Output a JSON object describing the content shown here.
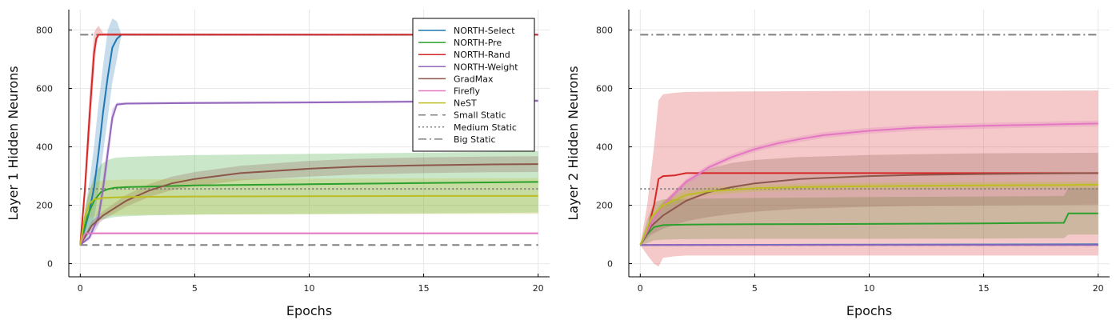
{
  "chart_data": [
    {
      "type": "line",
      "title": "",
      "xlabel": "Epochs",
      "ylabel": "Layer 1 Hidden Neurons",
      "xlim": [
        -0.5,
        20.5
      ],
      "ylim": [
        -45,
        870
      ],
      "xticks": [
        "0",
        "5",
        "10",
        "15",
        "20"
      ],
      "yticks": [
        "0",
        "200",
        "400",
        "600",
        "800"
      ],
      "grid": true,
      "legend_position": "top-right",
      "legend": [
        "NORTH-Select",
        "NORTH-Pre",
        "NORTH-Rand",
        "NORTH-Weight",
        "GradMax",
        "Firefly",
        "NeST",
        "Small Static",
        "Medium Static",
        "Big Static"
      ],
      "series": [
        {
          "name": "NORTH-Select",
          "color": "#1f77b4",
          "x": [
            0,
            0.2,
            0.4,
            0.6,
            0.8,
            1.0,
            1.2,
            1.4,
            1.6,
            1.8,
            20
          ],
          "y": [
            64,
            120,
            180,
            260,
            380,
            520,
            640,
            740,
            770,
            784,
            784
          ],
          "band_lo": [
            64,
            80,
            100,
            150,
            250,
            380,
            500,
            620,
            700,
            784,
            784
          ],
          "band_hi": [
            64,
            180,
            280,
            400,
            550,
            680,
            800,
            840,
            830,
            784,
            784
          ]
        },
        {
          "name": "NORTH-Pre",
          "color": "#2ca02c",
          "x": [
            0,
            0.3,
            0.6,
            0.9,
            1.2,
            1.5,
            2,
            3,
            5,
            10,
            15,
            20
          ],
          "y": [
            64,
            160,
            215,
            245,
            255,
            260,
            262,
            264,
            268,
            272,
            276,
            280
          ],
          "band_lo": [
            64,
            110,
            140,
            150,
            155,
            160,
            162,
            165,
            168,
            170,
            172,
            175
          ],
          "band_hi": [
            64,
            220,
            300,
            340,
            355,
            362,
            365,
            368,
            372,
            376,
            380,
            385
          ]
        },
        {
          "name": "NORTH-Rand",
          "color": "#d62728",
          "x": [
            0,
            0.2,
            0.4,
            0.6,
            0.7,
            0.8,
            1.0,
            20
          ],
          "y": [
            64,
            250,
            500,
            720,
            770,
            784,
            784,
            784
          ],
          "band_lo": [
            64,
            200,
            420,
            650,
            740,
            784,
            784,
            784
          ],
          "band_hi": [
            64,
            300,
            580,
            790,
            805,
            815,
            790,
            784
          ]
        },
        {
          "name": "NORTH-Weight",
          "color": "#9467bd",
          "x": [
            0,
            0.4,
            0.8,
            1.0,
            1.2,
            1.4,
            1.6,
            2,
            5,
            10,
            15,
            20
          ],
          "y": [
            64,
            90,
            160,
            260,
            380,
            500,
            545,
            548,
            550,
            552,
            555,
            558
          ],
          "band_lo": [
            64,
            80,
            130,
            220,
            340,
            470,
            540,
            545,
            547,
            549,
            551,
            553
          ],
          "band_hi": [
            64,
            100,
            190,
            300,
            420,
            530,
            552,
            553,
            555,
            557,
            559,
            562
          ]
        },
        {
          "name": "GradMax",
          "color": "#8c564b",
          "x": [
            0,
            0.5,
            1,
            2,
            3,
            4,
            5,
            7,
            10,
            12,
            15,
            18,
            20
          ],
          "y": [
            64,
            130,
            165,
            215,
            250,
            275,
            290,
            310,
            325,
            332,
            337,
            340,
            341
          ],
          "band_lo": [
            64,
            115,
            150,
            195,
            228,
            252,
            266,
            285,
            298,
            305,
            310,
            313,
            314
          ],
          "band_hi": [
            64,
            145,
            180,
            235,
            272,
            298,
            314,
            335,
            352,
            359,
            364,
            367,
            368
          ]
        },
        {
          "name": "Firefly",
          "color": "#e377c2",
          "x": [
            0,
            0.2,
            0.5,
            1,
            20
          ],
          "y": [
            64,
            104,
            104,
            104,
            104
          ],
          "band_lo": [
            64,
            101,
            101,
            101,
            101
          ],
          "band_hi": [
            64,
            107,
            107,
            107,
            107
          ]
        },
        {
          "name": "NeST",
          "color": "#bcbd22",
          "x": [
            0,
            0.2,
            0.4,
            0.6,
            1,
            2,
            5,
            10,
            15,
            20
          ],
          "y": [
            64,
            160,
            205,
            220,
            225,
            228,
            230,
            231,
            232,
            232
          ],
          "band_lo": [
            64,
            130,
            155,
            162,
            165,
            167,
            168,
            169,
            170,
            170
          ],
          "band_hi": [
            64,
            190,
            255,
            278,
            285,
            288,
            290,
            291,
            292,
            293
          ]
        }
      ],
      "references": [
        {
          "name": "Small Static",
          "y": 64,
          "color": "#808080",
          "dash": "dash"
        },
        {
          "name": "Medium Static",
          "y": 256,
          "color": "#808080",
          "dash": "dot"
        },
        {
          "name": "Big Static",
          "y": 784,
          "color": "#808080",
          "dash": "dashdot"
        }
      ]
    },
    {
      "type": "line",
      "title": "",
      "xlabel": "Epochs",
      "ylabel": "Layer 2 Hidden Neurons",
      "xlim": [
        -0.5,
        20.5
      ],
      "ylim": [
        -45,
        870
      ],
      "xticks": [
        "0",
        "5",
        "10",
        "15",
        "20"
      ],
      "yticks": [
        "0",
        "200",
        "400",
        "600",
        "800"
      ],
      "grid": true,
      "legend_position": "none",
      "legend": [],
      "series": [
        {
          "name": "NORTH-Select",
          "color": "#1f77b4",
          "x": [
            0,
            20
          ],
          "y": [
            64,
            66
          ],
          "band_lo": [
            64,
            62
          ],
          "band_hi": [
            64,
            70
          ]
        },
        {
          "name": "NORTH-Pre",
          "color": "#2ca02c",
          "x": [
            0,
            0.3,
            0.6,
            1,
            2,
            5,
            10,
            15,
            18.5,
            18.7,
            20
          ],
          "y": [
            64,
            100,
            125,
            132,
            134,
            135,
            136,
            138,
            140,
            172,
            172
          ],
          "band_lo": [
            64,
            70,
            80,
            82,
            84,
            85,
            85,
            86,
            87,
            100,
            100
          ],
          "band_hi": [
            64,
            150,
            210,
            220,
            222,
            225,
            228,
            230,
            232,
            260,
            260
          ]
        },
        {
          "name": "NORTH-Rand",
          "color": "#d62728",
          "x": [
            0,
            0.3,
            0.6,
            0.8,
            1.0,
            1.5,
            2.0,
            5,
            10,
            15,
            20
          ],
          "y": [
            64,
            110,
            200,
            290,
            300,
            302,
            310,
            310,
            310,
            310,
            310
          ],
          "band_lo": [
            64,
            30,
            0,
            -10,
            20,
            25,
            28,
            28,
            28,
            28,
            28
          ],
          "band_hi": [
            64,
            200,
            400,
            560,
            580,
            585,
            588,
            590,
            592,
            592,
            593
          ]
        },
        {
          "name": "NORTH-Weight",
          "color": "#9467bd",
          "x": [
            0,
            20
          ],
          "y": [
            64,
            64
          ],
          "band_lo": [
            64,
            61
          ],
          "band_hi": [
            64,
            67
          ]
        },
        {
          "name": "GradMax",
          "color": "#8c564b",
          "x": [
            0,
            0.5,
            1,
            2,
            3,
            4,
            5,
            7,
            10,
            12,
            15,
            18,
            20
          ],
          "y": [
            64,
            130,
            165,
            215,
            245,
            262,
            275,
            290,
            300,
            304,
            307,
            309,
            310
          ],
          "band_lo": [
            64,
            100,
            120,
            145,
            160,
            170,
            178,
            188,
            195,
            198,
            200,
            201,
            202
          ],
          "band_hi": [
            64,
            160,
            210,
            285,
            325,
            345,
            355,
            365,
            372,
            375,
            378,
            379,
            380
          ]
        },
        {
          "name": "Firefly",
          "color": "#e377c2",
          "x": [
            0,
            0.5,
            1,
            2,
            3,
            4,
            5,
            6,
            7,
            8,
            10,
            12,
            15,
            18,
            20
          ],
          "y": [
            64,
            140,
            200,
            280,
            330,
            365,
            392,
            412,
            427,
            440,
            455,
            465,
            472,
            477,
            480
          ],
          "band_lo": [
            64,
            130,
            190,
            270,
            320,
            355,
            382,
            402,
            417,
            430,
            445,
            455,
            462,
            467,
            470
          ],
          "band_hi": [
            64,
            150,
            210,
            290,
            340,
            375,
            402,
            422,
            437,
            450,
            465,
            475,
            482,
            487,
            490
          ]
        },
        {
          "name": "NeST",
          "color": "#bcbd22",
          "x": [
            0,
            0.5,
            1,
            2,
            3,
            5,
            7,
            10,
            15,
            20
          ],
          "y": [
            64,
            160,
            200,
            235,
            248,
            258,
            262,
            265,
            268,
            270
          ],
          "band_lo": [
            64,
            150,
            185,
            220,
            235,
            246,
            250,
            253,
            256,
            258
          ],
          "band_hi": [
            64,
            170,
            215,
            250,
            262,
            270,
            274,
            277,
            280,
            282
          ]
        }
      ],
      "references": [
        {
          "name": "Small Static",
          "y": 64,
          "color": "#808080",
          "dash": "dash"
        },
        {
          "name": "Medium Static",
          "y": 256,
          "color": "#808080",
          "dash": "dot"
        },
        {
          "name": "Big Static",
          "y": 784,
          "color": "#808080",
          "dash": "dashdot"
        }
      ]
    }
  ]
}
